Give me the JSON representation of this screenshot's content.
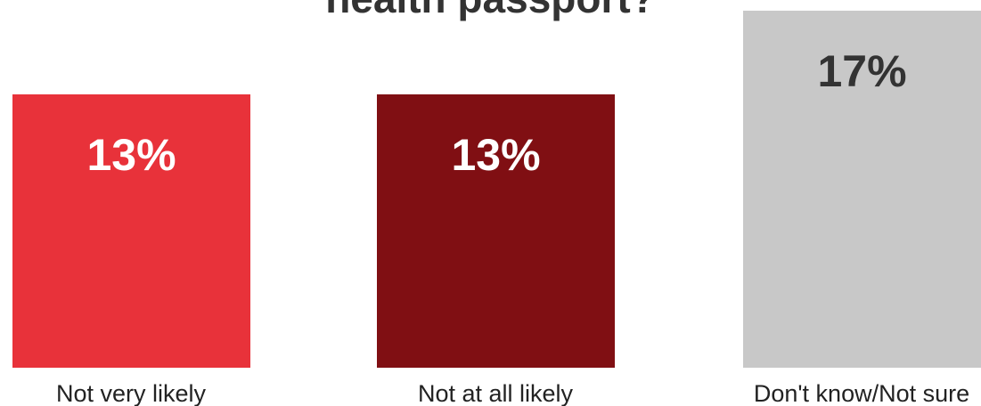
{
  "chart_data": {
    "type": "bar",
    "title": "health passport?",
    "categories": [
      "Not very likely",
      "Not at all likely",
      "Don't know/Not sure"
    ],
    "values": [
      13,
      13,
      17
    ],
    "value_labels": [
      "13%",
      "13%",
      "17%"
    ],
    "colors": [
      "#e8323a",
      "#800f13",
      "#c8c8c8"
    ],
    "label_colors": [
      "#ffffff",
      "#ffffff",
      "#333333"
    ],
    "xlabel": "",
    "ylabel": "",
    "ylim": [
      0,
      18
    ],
    "grid": false,
    "legend": "none"
  }
}
